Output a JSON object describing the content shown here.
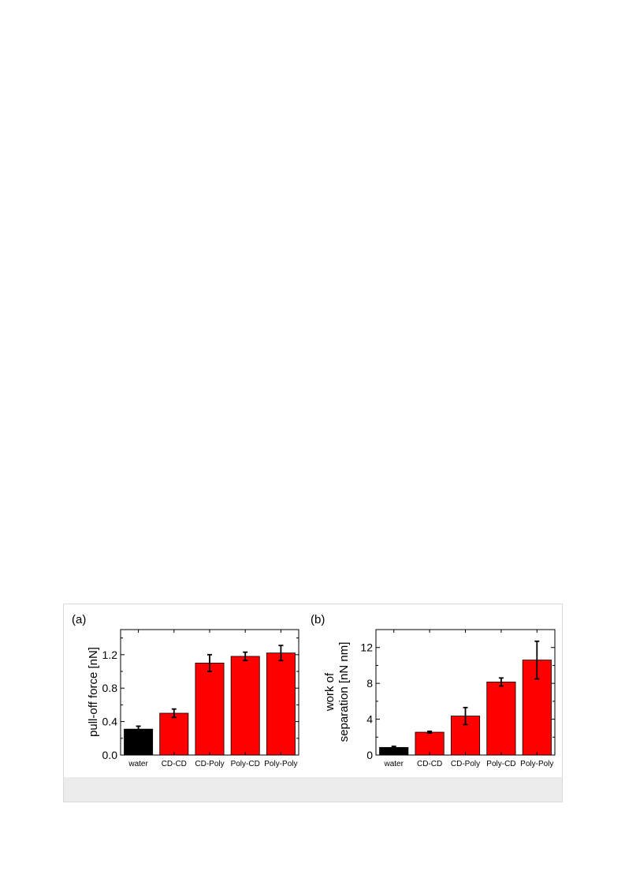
{
  "chart_data": [
    {
      "type": "bar",
      "panel_label": "(a)",
      "title": "",
      "xlabel": "",
      "ylabel": "pull-off force [nN]",
      "categories": [
        "water",
        "CD-CD",
        "CD-Poly",
        "Poly-CD",
        "Poly-Poly"
      ],
      "values": [
        0.31,
        0.5,
        1.1,
        1.18,
        1.22
      ],
      "errors": [
        0.035,
        0.05,
        0.1,
        0.05,
        0.09
      ],
      "colors": [
        "#000000",
        "#ff0000",
        "#ff0000",
        "#ff0000",
        "#ff0000"
      ],
      "ylim": [
        0,
        1.5
      ],
      "yticks": [
        0.0,
        0.4,
        0.8,
        1.2
      ],
      "ytick_labels": [
        "0.0",
        "0.4",
        "0.8",
        "1.2"
      ],
      "grid": false
    },
    {
      "type": "bar",
      "panel_label": "(b)",
      "title": "",
      "xlabel": "",
      "ylabel": [
        "work of",
        "separation [nN nm]"
      ],
      "categories": [
        "water",
        "CD-CD",
        "CD-Poly",
        "Poly-CD",
        "Poly-Poly"
      ],
      "values": [
        0.85,
        2.55,
        4.35,
        8.15,
        10.6
      ],
      "errors": [
        0.12,
        0.1,
        0.95,
        0.45,
        2.1
      ],
      "colors": [
        "#000000",
        "#ff0000",
        "#ff0000",
        "#ff0000",
        "#ff0000"
      ],
      "ylim": [
        0,
        14
      ],
      "yticks": [
        0,
        4,
        8,
        12
      ],
      "ytick_labels": [
        "0",
        "4",
        "8",
        "12"
      ],
      "grid": false
    }
  ]
}
